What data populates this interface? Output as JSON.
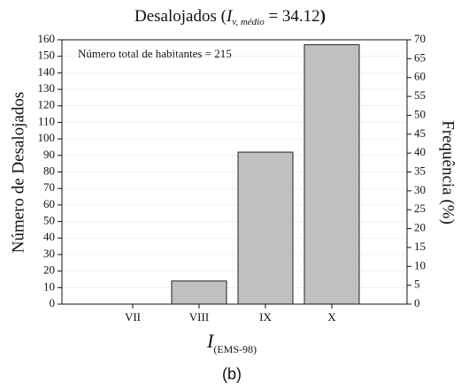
{
  "chart_data": {
    "type": "bar",
    "title_parts": [
      "Desalojados (",
      "I",
      "v, médio",
      " = 34.12",
      ")"
    ],
    "annotation": "Número total de habitantes = 215",
    "xlabel_parts": [
      "I",
      "(EMS-98)"
    ],
    "ylabel": "Número de Desalojados",
    "y2label": "Frequência (%)",
    "caption": "(b)",
    "categories": [
      "VII",
      "VIII",
      "IX",
      "X"
    ],
    "values": [
      0,
      14,
      92,
      157
    ],
    "color": "#c0c0c0",
    "ylim": [
      0,
      160
    ],
    "yticks": [
      0,
      10,
      20,
      30,
      40,
      50,
      60,
      70,
      80,
      90,
      100,
      110,
      120,
      130,
      140,
      150,
      160
    ],
    "y2lim": [
      0,
      70
    ],
    "y2ticks": [
      0,
      5,
      10,
      15,
      20,
      25,
      30,
      35,
      40,
      45,
      50,
      55,
      60,
      65,
      70
    ],
    "grid": true
  }
}
